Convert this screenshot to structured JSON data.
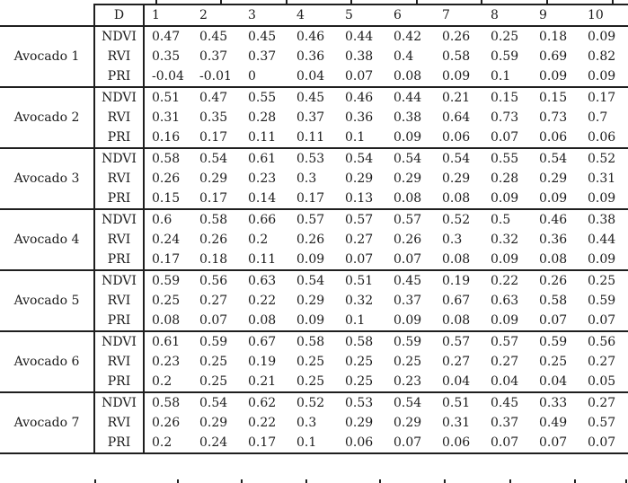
{
  "table": {
    "header": {
      "corner": "",
      "d_label": "D",
      "day_columns": [
        "1",
        "2",
        "3",
        "4",
        "5",
        "6",
        "7",
        "8",
        "9",
        "10"
      ]
    },
    "groups": [
      {
        "label": "Avocado 1",
        "rows": [
          {
            "index": "NDVI",
            "cells": [
              "0.47",
              "0.45",
              "0.45",
              "0.46",
              "0.44",
              "0.42",
              "0.26",
              "0.25",
              "0.18",
              "0.09"
            ]
          },
          {
            "index": "RVI",
            "cells": [
              "0.35",
              "0.37",
              "0.37",
              "0.36",
              "0.38",
              "0.4",
              "0.58",
              "0.59",
              "0.69",
              "0.82"
            ]
          },
          {
            "index": "PRI",
            "cells": [
              "-0.04",
              "-0.01",
              "0",
              "0.04",
              "0.07",
              "0.08",
              "0.09",
              "0.1",
              "0.09",
              "0.09"
            ]
          }
        ]
      },
      {
        "label": "Avocado 2",
        "rows": [
          {
            "index": "NDVI",
            "cells": [
              "0.51",
              "0.47",
              "0.55",
              "0.45",
              "0.46",
              "0.44",
              "0.21",
              "0.15",
              "0.15",
              "0.17"
            ]
          },
          {
            "index": "RVI",
            "cells": [
              "0.31",
              "0.35",
              "0.28",
              "0.37",
              "0.36",
              "0.38",
              "0.64",
              "0.73",
              "0.73",
              "0.7"
            ]
          },
          {
            "index": "PRI",
            "cells": [
              "0.16",
              "0.17",
              "0.11",
              "0.11",
              "0.1",
              "0.09",
              "0.06",
              "0.07",
              "0.06",
              "0.06"
            ]
          }
        ]
      },
      {
        "label": "Avocado 3",
        "rows": [
          {
            "index": "NDVI",
            "cells": [
              "0.58",
              "0.54",
              "0.61",
              "0.53",
              "0.54",
              "0.54",
              "0.54",
              "0.55",
              "0.54",
              "0.52"
            ]
          },
          {
            "index": "RVI",
            "cells": [
              "0.26",
              "0.29",
              "0.23",
              "0.3",
              "0.29",
              "0.29",
              "0.29",
              "0.28",
              "0.29",
              "0.31"
            ]
          },
          {
            "index": "PRI",
            "cells": [
              "0.15",
              "0.17",
              "0.14",
              "0.17",
              "0.13",
              "0.08",
              "0.08",
              "0.09",
              "0.09",
              "0.09"
            ]
          }
        ]
      },
      {
        "label": "Avocado 4",
        "rows": [
          {
            "index": "NDVI",
            "cells": [
              "0.6",
              "0.58",
              "0.66",
              "0.57",
              "0.57",
              "0.57",
              "0.52",
              "0.5",
              "0.46",
              "0.38"
            ]
          },
          {
            "index": "RVI",
            "cells": [
              "0.24",
              "0.26",
              "0.2",
              "0.26",
              "0.27",
              "0.26",
              "0.3",
              "0.32",
              "0.36",
              "0.44"
            ]
          },
          {
            "index": "PRI",
            "cells": [
              "0.17",
              "0.18",
              "0.11",
              "0.09",
              "0.07",
              "0.07",
              "0.08",
              "0.09",
              "0.08",
              "0.09"
            ]
          }
        ]
      },
      {
        "label": "Avocado 5",
        "rows": [
          {
            "index": "NDVI",
            "cells": [
              "0.59",
              "0.56",
              "0.63",
              "0.54",
              "0.51",
              "0.45",
              "0.19",
              "0.22",
              "0.26",
              "0.25"
            ]
          },
          {
            "index": "RVI",
            "cells": [
              "0.25",
              "0.27",
              "0.22",
              "0.29",
              "0.32",
              "0.37",
              "0.67",
              "0.63",
              "0.58",
              "0.59"
            ]
          },
          {
            "index": "PRI",
            "cells": [
              "0.08",
              "0.07",
              "0.08",
              "0.09",
              "0.1",
              "0.09",
              "0.08",
              "0.09",
              "0.07",
              "0.07"
            ]
          }
        ]
      },
      {
        "label": "Avocado 6",
        "rows": [
          {
            "index": "NDVI",
            "cells": [
              "0.61",
              "0.59",
              "0.67",
              "0.58",
              "0.58",
              "0.59",
              "0.57",
              "0.57",
              "0.59",
              "0.56"
            ]
          },
          {
            "index": "RVI",
            "cells": [
              "0.23",
              "0.25",
              "0.19",
              "0.25",
              "0.25",
              "0.25",
              "0.27",
              "0.27",
              "0.25",
              "0.27"
            ]
          },
          {
            "index": "PRI",
            "cells": [
              "0.2",
              "0.25",
              "0.21",
              "0.25",
              "0.25",
              "0.23",
              "0.04",
              "0.04",
              "0.04",
              "0.05"
            ]
          }
        ]
      },
      {
        "label": "Avocado 7",
        "rows": [
          {
            "index": "NDVI",
            "cells": [
              "0.58",
              "0.54",
              "0.62",
              "0.52",
              "0.53",
              "0.54",
              "0.51",
              "0.45",
              "0.33",
              "0.27"
            ]
          },
          {
            "index": "RVI",
            "cells": [
              "0.26",
              "0.29",
              "0.22",
              "0.3",
              "0.29",
              "0.29",
              "0.31",
              "0.37",
              "0.49",
              "0.57"
            ]
          },
          {
            "index": "PRI",
            "cells": [
              "0.2",
              "0.24",
              "0.17",
              "0.1",
              "0.06",
              "0.07",
              "0.06",
              "0.07",
              "0.07",
              "0.07"
            ]
          }
        ]
      }
    ]
  }
}
